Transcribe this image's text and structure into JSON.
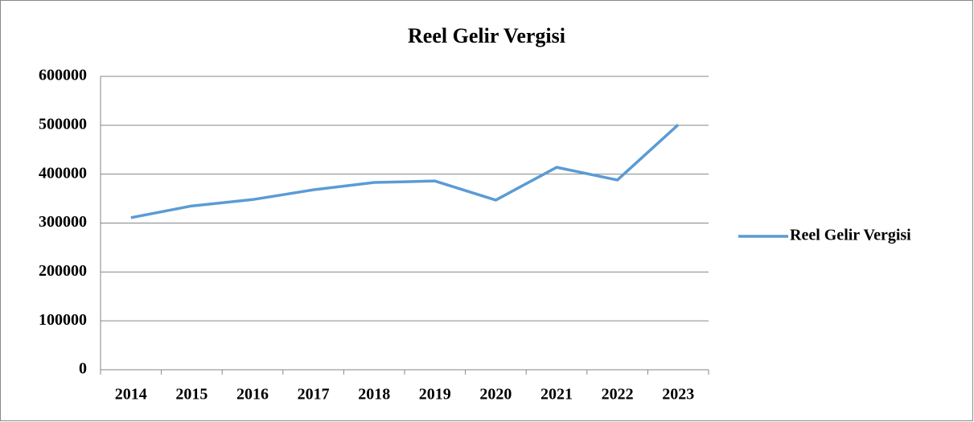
{
  "chart_data": {
    "type": "line",
    "title": "Reel Gelir Vergisi",
    "categories": [
      "2014",
      "2015",
      "2016",
      "2017",
      "2018",
      "2019",
      "2020",
      "2021",
      "2022",
      "2023"
    ],
    "series": [
      {
        "name": "Reel Gelir Vergisi",
        "color": "#5b9bd5",
        "values": [
          311000,
          335000,
          348000,
          368000,
          383000,
          386000,
          347000,
          414000,
          388000,
          501000
        ]
      }
    ],
    "ylim": [
      0,
      600000
    ],
    "yticks": [
      0,
      100000,
      200000,
      300000,
      400000,
      500000,
      600000
    ],
    "grid": true,
    "legend": "right"
  }
}
